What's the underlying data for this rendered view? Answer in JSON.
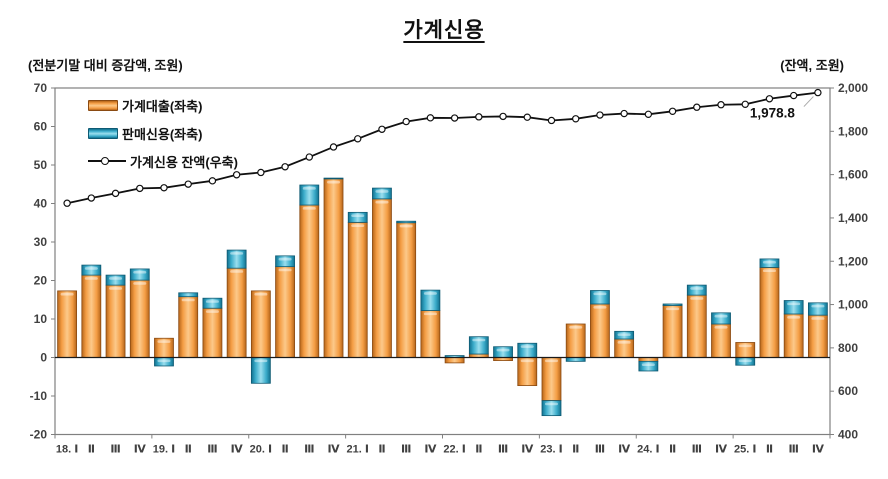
{
  "title": "가계신용",
  "left_axis_unit": "(전분기말 대비 증감액, 조원)",
  "right_axis_unit": "(잔액, 조원)",
  "chart_data": {
    "type": "combo-stacked-bar-line",
    "background": "#ffffff",
    "grid": false,
    "legend_position": "top-left-inside",
    "categories": [
      "18. Ⅰ",
      "Ⅱ",
      "Ⅲ",
      "Ⅳ",
      "19. Ⅰ",
      "Ⅱ",
      "Ⅲ",
      "Ⅳ",
      "20. Ⅰ",
      "Ⅱ",
      "Ⅲ",
      "Ⅳ",
      "21. Ⅰ",
      "Ⅱ",
      "Ⅲ",
      "Ⅳ",
      "22. Ⅰ",
      "Ⅱ",
      "Ⅲ",
      "Ⅳ",
      "23. Ⅰ",
      "Ⅱ",
      "Ⅲ",
      "Ⅳ",
      "24. Ⅰ",
      "Ⅱ",
      "Ⅲ",
      "Ⅳ",
      "25. Ⅰ",
      "Ⅱ",
      "Ⅲ",
      "Ⅳ"
    ],
    "left_axis": {
      "min": -20,
      "max": 70,
      "step": 10
    },
    "right_axis": {
      "min": 400,
      "max": 2000,
      "step": 200
    },
    "series": [
      {
        "name": "가계대출(좌축)",
        "type": "bar",
        "axis": "left",
        "color": "#F49D44",
        "values": [
          17.3,
          21.4,
          18.8,
          20.1,
          5.0,
          15.8,
          12.8,
          23.2,
          17.3,
          23.6,
          39.6,
          46.4,
          35.1,
          41.2,
          35.0,
          12.2,
          -1.4,
          0.9,
          -0.8,
          -7.3,
          -11.2,
          8.7,
          13.9,
          4.8,
          -1.0,
          13.5,
          16.2,
          8.7,
          3.9,
          23.4,
          11.3,
          11.0
        ]
      },
      {
        "name": "판매신용(좌축)",
        "type": "bar",
        "axis": "left",
        "color": "#3BACCA",
        "values": [
          0.0,
          2.6,
          2.6,
          2.9,
          -2.2,
          1.0,
          2.6,
          4.7,
          -6.7,
          2.8,
          5.2,
          0.2,
          2.6,
          2.8,
          0.4,
          5.3,
          0.5,
          4.5,
          2.8,
          3.7,
          -3.9,
          -1.0,
          3.5,
          2.0,
          -2.5,
          0.4,
          2.6,
          2.9,
          -2.0,
          2.2,
          3.5,
          3.2
        ]
      },
      {
        "name": "가계신용 잔액(우축)",
        "type": "line",
        "axis": "right",
        "color": "#111111",
        "marker": "circle",
        "values": [
          1468.0,
          1492.0,
          1513.4,
          1536.4,
          1539.2,
          1556.0,
          1571.4,
          1599.3,
          1609.9,
          1636.3,
          1681.1,
          1727.7,
          1765.4,
          1809.4,
          1844.8,
          1862.3,
          1861.4,
          1866.8,
          1868.8,
          1865.2,
          1850.1,
          1857.8,
          1875.2,
          1882.0,
          1878.5,
          1892.4,
          1911.2,
          1922.8,
          1924.7,
          1950.3,
          1965.1,
          1978.8
        ]
      }
    ],
    "annotation": {
      "text": "1,978.8",
      "series_index": 2,
      "point_index": 31
    }
  },
  "colors": {
    "bar_orange_edge": "#8a4a12",
    "bar_blue_edge": "#0e5a73",
    "frame": "#808080",
    "tick_text": "#404040",
    "zero_line": "#1a1a1a"
  }
}
